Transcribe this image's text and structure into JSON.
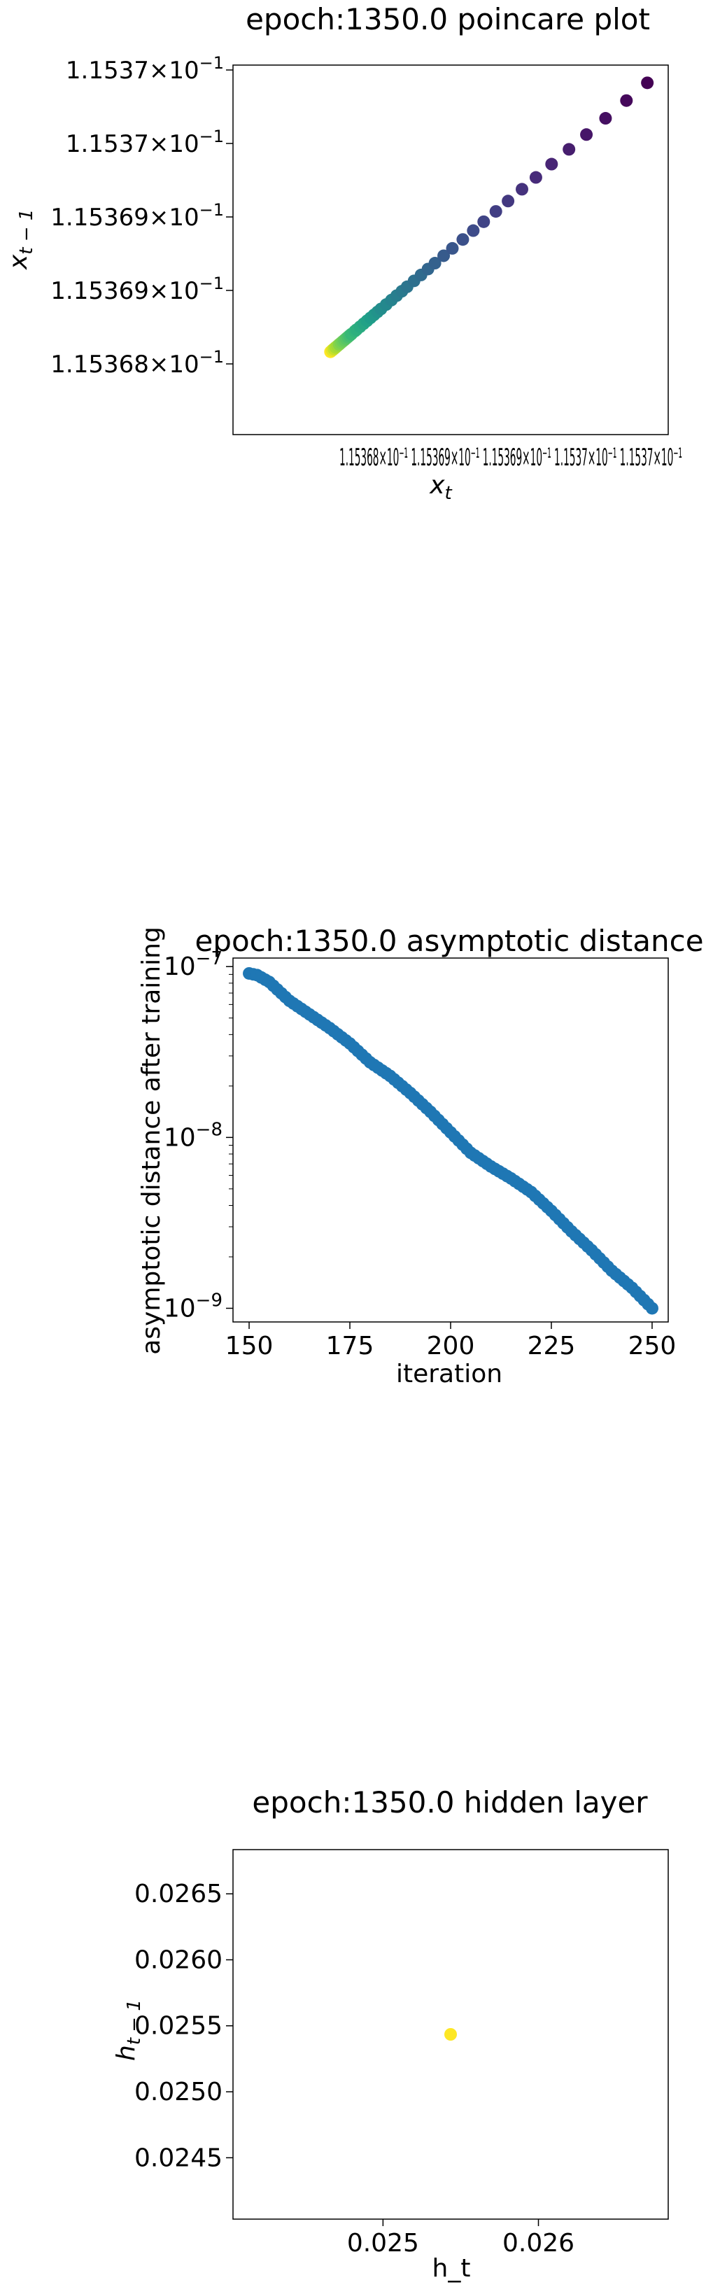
{
  "chart_data": [
    {
      "type": "scatter",
      "title": "epoch:1350.0 poincare plot",
      "xlabel": "x_t",
      "ylabel": "x_{t-1}",
      "colormap": "viridis",
      "x_tick_labels": [
        "1.15368",
        "1×10",
        "1.1536",
        "1×10",
        "1.1536",
        "1×10",
        "1.1537",
        "×10"
      ],
      "x_tick_labels_display": "1.15368×10⁻¹ 1.15369×10⁻¹ 1.15369×10⁻¹ 1.1537×10⁻¹ 1.1537×10⁻¹",
      "y_tick_labels": [
        {
          "mantissa": "1.1537",
          "exp": "−1"
        },
        {
          "mantissa": "1.1537",
          "exp": "−1"
        },
        {
          "mantissa": "1.15369",
          "exp": "−1"
        },
        {
          "mantissa": "1.15369",
          "exp": "−1"
        },
        {
          "mantissa": "1.15368",
          "exp": "−1"
        }
      ],
      "xlim": [
        0.1153678,
        0.1153703
      ],
      "ylim": [
        0.1153678,
        0.1153703
      ],
      "points": [
        {
          "x": 0.11537018,
          "y": 0.11537018
        },
        {
          "x": 0.11537006,
          "y": 0.11537006
        },
        {
          "x": 0.11536994,
          "y": 0.11536994
        },
        {
          "x": 0.11536983,
          "y": 0.11536983
        },
        {
          "x": 0.11536973,
          "y": 0.11536973
        },
        {
          "x": 0.11536963,
          "y": 0.11536963
        },
        {
          "x": 0.11536954,
          "y": 0.11536954
        },
        {
          "x": 0.11536946,
          "y": 0.11536946
        },
        {
          "x": 0.11536938,
          "y": 0.11536938
        },
        {
          "x": 0.11536931,
          "y": 0.11536931
        },
        {
          "x": 0.11536924,
          "y": 0.11536924
        },
        {
          "x": 0.11536918,
          "y": 0.11536918
        },
        {
          "x": 0.11536912,
          "y": 0.11536912
        },
        {
          "x": 0.11536906,
          "y": 0.11536906
        },
        {
          "x": 0.11536901,
          "y": 0.11536901
        },
        {
          "x": 0.11536896,
          "y": 0.11536896
        },
        {
          "x": 0.11536892,
          "y": 0.11536892
        },
        {
          "x": 0.11536888,
          "y": 0.11536888
        },
        {
          "x": 0.11536884,
          "y": 0.11536884
        },
        {
          "x": 0.1153688,
          "y": 0.1153688
        },
        {
          "x": 0.11536877,
          "y": 0.11536877
        },
        {
          "x": 0.11536874,
          "y": 0.11536874
        },
        {
          "x": 0.11536871,
          "y": 0.11536871
        },
        {
          "x": 0.11536868,
          "y": 0.11536868
        },
        {
          "x": 0.11536865,
          "y": 0.11536865
        },
        {
          "x": 0.11536863,
          "y": 0.11536863
        },
        {
          "x": 0.11536861,
          "y": 0.11536861
        },
        {
          "x": 0.11536859,
          "y": 0.11536859
        },
        {
          "x": 0.11536857,
          "y": 0.11536857
        },
        {
          "x": 0.11536855,
          "y": 0.11536855
        },
        {
          "x": 0.11536853,
          "y": 0.11536853
        },
        {
          "x": 0.11536851,
          "y": 0.11536851
        },
        {
          "x": 0.1153685,
          "y": 0.1153685
        },
        {
          "x": 0.11536848,
          "y": 0.11536848
        },
        {
          "x": 0.11536847,
          "y": 0.11536847
        },
        {
          "x": 0.11536846,
          "y": 0.11536846
        },
        {
          "x": 0.11536845,
          "y": 0.11536845
        },
        {
          "x": 0.11536844,
          "y": 0.11536844
        },
        {
          "x": 0.11536843,
          "y": 0.11536843
        },
        {
          "x": 0.11536842,
          "y": 0.11536842
        },
        {
          "x": 0.11536841,
          "y": 0.11536841
        },
        {
          "x": 0.11536841,
          "y": 0.11536841
        },
        {
          "x": 0.1153684,
          "y": 0.1153684
        },
        {
          "x": 0.11536839,
          "y": 0.11536839
        },
        {
          "x": 0.11536839,
          "y": 0.11536839
        },
        {
          "x": 0.11536838,
          "y": 0.11536838
        },
        {
          "x": 0.11536838,
          "y": 0.11536838
        },
        {
          "x": 0.11536837,
          "y": 0.11536837
        },
        {
          "x": 0.11536837,
          "y": 0.11536837
        },
        {
          "x": 0.11536836,
          "y": 0.11536836
        }
      ]
    },
    {
      "type": "scatter",
      "title": "epoch:1350.0 asymptotic distance",
      "xlabel": "iteration",
      "ylabel": "asymptotic distance after training",
      "xlim": [
        146,
        254
      ],
      "ylim_log10": [
        -9.08,
        -6.95
      ],
      "y_scale": "log",
      "x_ticks": [
        150,
        175,
        200,
        225,
        250
      ],
      "y_ticks": [
        {
          "base": "10",
          "exp": "−7"
        },
        {
          "base": "10",
          "exp": "−8"
        },
        {
          "base": "10",
          "exp": "−9"
        }
      ],
      "color": "#1f77b4",
      "x_start": 150,
      "x_end": 250,
      "y_curve_log10": [
        {
          "x": 150,
          "y": -7.04
        },
        {
          "x": 152,
          "y": -7.05
        },
        {
          "x": 155,
          "y": -7.09
        },
        {
          "x": 160,
          "y": -7.2
        },
        {
          "x": 165,
          "y": -7.28
        },
        {
          "x": 170,
          "y": -7.36
        },
        {
          "x": 175,
          "y": -7.45
        },
        {
          "x": 180,
          "y": -7.56
        },
        {
          "x": 185,
          "y": -7.64
        },
        {
          "x": 190,
          "y": -7.74
        },
        {
          "x": 195,
          "y": -7.85
        },
        {
          "x": 200,
          "y": -7.97
        },
        {
          "x": 205,
          "y": -8.09
        },
        {
          "x": 210,
          "y": -8.17
        },
        {
          "x": 215,
          "y": -8.24
        },
        {
          "x": 220,
          "y": -8.32
        },
        {
          "x": 225,
          "y": -8.43
        },
        {
          "x": 230,
          "y": -8.55
        },
        {
          "x": 235,
          "y": -8.66
        },
        {
          "x": 240,
          "y": -8.78
        },
        {
          "x": 245,
          "y": -8.88
        },
        {
          "x": 250,
          "y": -9.0
        }
      ]
    },
    {
      "type": "scatter",
      "title": "epoch:1350.0 hidden layer",
      "xlabel": "h_t",
      "ylabel": "h_{t-1}",
      "xlim": [
        0.024035,
        0.026835
      ],
      "ylim": [
        0.024035,
        0.026835
      ],
      "x_ticks": [
        "0.025",
        "0.026"
      ],
      "x_tick_values": [
        0.025,
        0.026
      ],
      "y_ticks": [
        "0.0265",
        "0.0260",
        "0.0255",
        "0.0250",
        "0.0245"
      ],
      "y_tick_values": [
        0.0265,
        0.026,
        0.0255,
        0.025,
        0.0245
      ],
      "points": [
        {
          "x": 0.025435,
          "y": 0.025435
        }
      ],
      "point_color": "#fde725"
    }
  ]
}
